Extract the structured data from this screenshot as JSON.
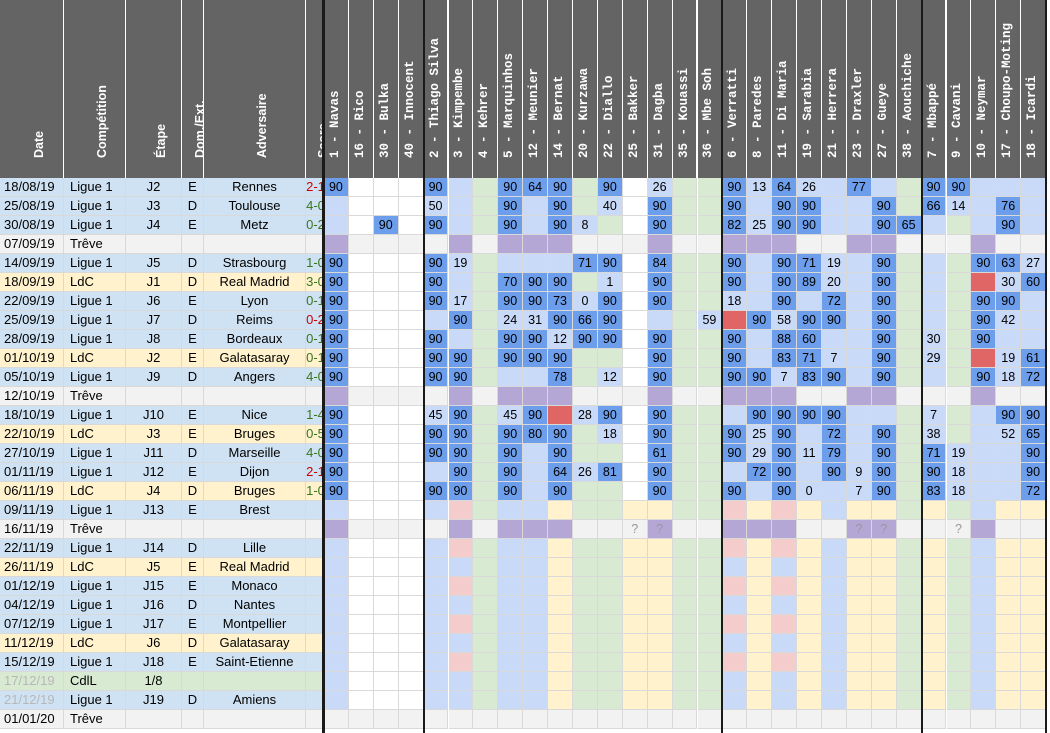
{
  "colors": {
    "header_bg": "#646464",
    "header_text": "#ffffff",
    "ligue1": "#cfe2f3",
    "ldc": "#fff2cc",
    "cdl": "#d9ead3",
    "treve": "#f2f2f2",
    "win": "#38761d",
    "loss": "#cc0000",
    "full90": "#6d9eeb",
    "light_blue": "#c9daf8",
    "green": "#d9ead3",
    "purple": "#b4a7d6",
    "red": "#e06666",
    "pink": "#f4cccc",
    "yellow": "#fff2cc",
    "sub_yellow": "#ffff66",
    "sub_blue": "#a4c2f4"
  },
  "header": {
    "cols": [
      "Date",
      "Compétition",
      "Étape",
      "Dom./Ext.",
      "Adversaire",
      "Score"
    ]
  },
  "players": [
    "1 - Navas",
    "16 - Rico",
    "30 - Bulka",
    "40 - Innocent",
    "2 - Thiago Silva",
    "3 - Kimpembe",
    "4 - Kehrer",
    "5 - Marquinhos",
    "12 - Meunier",
    "14 - Bernat",
    "20 - Kurzawa",
    "22 - Diallo",
    "25 - Bakker",
    "31 - Dagba",
    "35 - Kouassi",
    "36 - Mbe Soh",
    "6 - Verratti",
    "8 - Paredes",
    "11 - Di Maria",
    "19 - Sarabia",
    "21 - Herrera",
    "23 - Draxler",
    "27 - Gueye",
    "38 - Aouchiche",
    "7 - Mbappé",
    "9 - Cavani",
    "10 - Neymar",
    "17 - Choupo-Moting",
    "18 - Icardi"
  ],
  "matches": [
    {
      "date": "18/08/19",
      "comp": "Ligue 1",
      "stage": "J2",
      "venue": "E",
      "opponent": "Rennes",
      "score": "2-1",
      "result": "L"
    },
    {
      "date": "25/08/19",
      "comp": "Ligue 1",
      "stage": "J3",
      "venue": "D",
      "opponent": "Toulouse",
      "score": "4-0",
      "result": "W"
    },
    {
      "date": "30/08/19",
      "comp": "Ligue 1",
      "stage": "J4",
      "venue": "E",
      "opponent": "Metz",
      "score": "0-2",
      "result": "W"
    },
    {
      "date": "07/09/19",
      "comp": "Trêve",
      "stage": "",
      "venue": "",
      "opponent": "",
      "score": "",
      "result": ""
    },
    {
      "date": "14/09/19",
      "comp": "Ligue 1",
      "stage": "J5",
      "venue": "D",
      "opponent": "Strasbourg",
      "score": "1-0",
      "result": "W"
    },
    {
      "date": "18/09/19",
      "comp": "LdC",
      "stage": "J1",
      "venue": "D",
      "opponent": "Real Madrid",
      "score": "3-0",
      "result": "W"
    },
    {
      "date": "22/09/19",
      "comp": "Ligue 1",
      "stage": "J6",
      "venue": "E",
      "opponent": "Lyon",
      "score": "0-1",
      "result": "W"
    },
    {
      "date": "25/09/19",
      "comp": "Ligue 1",
      "stage": "J7",
      "venue": "D",
      "opponent": "Reims",
      "score": "0-2",
      "result": "L"
    },
    {
      "date": "28/09/19",
      "comp": "Ligue 1",
      "stage": "J8",
      "venue": "E",
      "opponent": "Bordeaux",
      "score": "0-1",
      "result": "W"
    },
    {
      "date": "01/10/19",
      "comp": "LdC",
      "stage": "J2",
      "venue": "E",
      "opponent": "Galatasaray",
      "score": "0-1",
      "result": "W"
    },
    {
      "date": "05/10/19",
      "comp": "Ligue 1",
      "stage": "J9",
      "venue": "D",
      "opponent": "Angers",
      "score": "4-0",
      "result": "W"
    },
    {
      "date": "12/10/19",
      "comp": "Trêve",
      "stage": "",
      "venue": "",
      "opponent": "",
      "score": "",
      "result": ""
    },
    {
      "date": "18/10/19",
      "comp": "Ligue 1",
      "stage": "J10",
      "venue": "E",
      "opponent": "Nice",
      "score": "1-4",
      "result": "W"
    },
    {
      "date": "22/10/19",
      "comp": "LdC",
      "stage": "J3",
      "venue": "E",
      "opponent": "Bruges",
      "score": "0-5",
      "result": "W"
    },
    {
      "date": "27/10/19",
      "comp": "Ligue 1",
      "stage": "J11",
      "venue": "D",
      "opponent": "Marseille",
      "score": "4-0",
      "result": "W"
    },
    {
      "date": "01/11/19",
      "comp": "Ligue 1",
      "stage": "J12",
      "venue": "E",
      "opponent": "Dijon",
      "score": "2-1",
      "result": "L"
    },
    {
      "date": "06/11/19",
      "comp": "LdC",
      "stage": "J4",
      "venue": "D",
      "opponent": "Bruges",
      "score": "1-0",
      "result": "W"
    },
    {
      "date": "09/11/19",
      "comp": "Ligue 1",
      "stage": "J13",
      "venue": "E",
      "opponent": "Brest",
      "score": "",
      "result": ""
    },
    {
      "date": "16/11/19",
      "comp": "Trêve",
      "stage": "",
      "venue": "",
      "opponent": "",
      "score": "",
      "result": ""
    },
    {
      "date": "22/11/19",
      "comp": "Ligue 1",
      "stage": "J14",
      "venue": "D",
      "opponent": "Lille",
      "score": "",
      "result": ""
    },
    {
      "date": "26/11/19",
      "comp": "LdC",
      "stage": "J5",
      "venue": "E",
      "opponent": "Real Madrid",
      "score": "",
      "result": ""
    },
    {
      "date": "01/12/19",
      "comp": "Ligue 1",
      "stage": "J15",
      "venue": "E",
      "opponent": "Monaco",
      "score": "",
      "result": ""
    },
    {
      "date": "04/12/19",
      "comp": "Ligue 1",
      "stage": "J16",
      "venue": "D",
      "opponent": "Nantes",
      "score": "",
      "result": ""
    },
    {
      "date": "07/12/19",
      "comp": "Ligue 1",
      "stage": "J17",
      "venue": "E",
      "opponent": "Montpellier",
      "score": "",
      "result": ""
    },
    {
      "date": "11/12/19",
      "comp": "LdC",
      "stage": "J6",
      "venue": "D",
      "opponent": "Galatasaray",
      "score": "",
      "result": ""
    },
    {
      "date": "15/12/19",
      "comp": "Ligue 1",
      "stage": "J18",
      "venue": "E",
      "opponent": "Saint-Etienne",
      "score": "",
      "result": ""
    },
    {
      "date": "17/12/19",
      "comp": "CdlL",
      "stage": "1/8",
      "venue": "",
      "opponent": "",
      "score": "",
      "result": "",
      "faded": true
    },
    {
      "date": "21/12/19",
      "comp": "Ligue 1",
      "stage": "J19",
      "venue": "D",
      "opponent": "Amiens",
      "score": "",
      "result": "",
      "faded": true
    },
    {
      "date": "01/01/20",
      "comp": "Trêve",
      "stage": "",
      "venue": "",
      "opponent": "",
      "score": "",
      "result": ""
    }
  ],
  "grid": [
    [
      "90",
      "",
      "",
      "",
      "90",
      "",
      "",
      "90",
      "64",
      "90",
      "",
      "90",
      "",
      "26",
      "",
      "",
      "90",
      "13",
      "64",
      "26",
      "",
      "77",
      "",
      "",
      "90",
      "90",
      "",
      "",
      ""
    ],
    [
      "",
      "",
      "",
      "",
      "50",
      "",
      "",
      "90",
      "",
      "90",
      "",
      "40",
      "",
      "90",
      "",
      "",
      "90",
      "",
      "90",
      "90",
      "",
      "",
      "90",
      "",
      "66",
      "14",
      "",
      "76",
      ""
    ],
    [
      "",
      "",
      "90",
      "",
      "90",
      "",
      "",
      "90",
      "",
      "90",
      "8",
      "",
      "",
      "90",
      "",
      "",
      "82",
      "25",
      "90",
      "90",
      "",
      "",
      "90",
      "65",
      "",
      "",
      "",
      "90",
      ""
    ],
    [
      "",
      "",
      "",
      "",
      "",
      "",
      "",
      "",
      "",
      "",
      "",
      "",
      "",
      "",
      "",
      "",
      "",
      "",
      "",
      "",
      "",
      "",
      "",
      "",
      "",
      "",
      "",
      "",
      ""
    ],
    [
      "90",
      "",
      "",
      "",
      "90",
      "19",
      "",
      "",
      "",
      "",
      "71",
      "90",
      "",
      "84",
      "",
      "",
      "90",
      "",
      "90",
      "71",
      "19",
      "",
      "90",
      "",
      "",
      "",
      "90",
      "63",
      "27"
    ],
    [
      "90",
      "",
      "",
      "",
      "90",
      "",
      "",
      "70",
      "90",
      "90",
      "",
      "1",
      "",
      "90",
      "",
      "",
      "90",
      "",
      "90",
      "89",
      "20",
      "",
      "90",
      "",
      "",
      "",
      "",
      "30",
      "60"
    ],
    [
      "90",
      "",
      "",
      "",
      "90",
      "17",
      "",
      "90",
      "90",
      "73",
      "0",
      "90",
      "",
      "90",
      "",
      "",
      "18",
      "",
      "90",
      "",
      "72",
      "",
      "90",
      "",
      "",
      "",
      "90",
      "90",
      ""
    ],
    [
      "90",
      "",
      "",
      "",
      "",
      "90",
      "",
      "24",
      "31",
      "90",
      "66",
      "90",
      "",
      "",
      "",
      "59",
      "",
      "90",
      "58",
      "90",
      "90",
      "",
      "90",
      "",
      "",
      "",
      "90",
      "42",
      ""
    ],
    [
      "90",
      "",
      "",
      "",
      "90",
      "",
      "",
      "90",
      "90",
      "12",
      "90",
      "90",
      "",
      "90",
      "",
      "",
      "90",
      "",
      "88",
      "60",
      "",
      "",
      "90",
      "",
      "30",
      "",
      "90",
      "",
      ""
    ],
    [
      "90",
      "",
      "",
      "",
      "90",
      "90",
      "",
      "90",
      "90",
      "90",
      "",
      "",
      "",
      "90",
      "",
      "",
      "90",
      "",
      "83",
      "71",
      "7",
      "",
      "90",
      "",
      "29",
      "",
      "",
      "19",
      "61"
    ],
    [
      "90",
      "",
      "",
      "",
      "90",
      "90",
      "",
      "",
      "",
      "78",
      "",
      "12",
      "",
      "90",
      "",
      "",
      "90",
      "90",
      "7",
      "83",
      "90",
      "",
      "90",
      "",
      "",
      "",
      "90",
      "18",
      "72"
    ],
    [
      "",
      "",
      "",
      "",
      "",
      "",
      "",
      "",
      "",
      "",
      "",
      "",
      "",
      "",
      "",
      "",
      "",
      "",
      "",
      "",
      "",
      "",
      "",
      "",
      "",
      "",
      "",
      "",
      ""
    ],
    [
      "90",
      "",
      "",
      "",
      "45",
      "90",
      "",
      "45",
      "90",
      "",
      "28",
      "90",
      "",
      "90",
      "",
      "",
      "",
      "90",
      "90",
      "90",
      "90",
      "",
      "",
      "",
      "7",
      "",
      "",
      "90",
      "90"
    ],
    [
      "90",
      "",
      "",
      "",
      "90",
      "90",
      "",
      "90",
      "80",
      "90",
      "",
      "18",
      "",
      "90",
      "",
      "",
      "90",
      "25",
      "90",
      "",
      "72",
      "",
      "90",
      "",
      "38",
      "",
      "",
      "52",
      "65"
    ],
    [
      "90",
      "",
      "",
      "",
      "90",
      "90",
      "",
      "90",
      "",
      "90",
      "",
      "",
      "",
      "61",
      "",
      "",
      "90",
      "29",
      "90",
      "11",
      "79",
      "",
      "90",
      "",
      "71",
      "19",
      "",
      "",
      "90"
    ],
    [
      "90",
      "",
      "",
      "",
      "",
      "90",
      "",
      "90",
      "",
      "64",
      "26",
      "81",
      "",
      "90",
      "",
      "",
      "",
      "72",
      "90",
      "",
      "90",
      "9",
      "90",
      "",
      "90",
      "18",
      "",
      "",
      "90"
    ],
    [
      "90",
      "",
      "",
      "",
      "90",
      "90",
      "",
      "90",
      "",
      "90",
      "",
      "",
      "",
      "90",
      "",
      "",
      "90",
      "",
      "90",
      "0",
      "",
      "7",
      "90",
      "",
      "83",
      "18",
      "",
      "",
      "72"
    ],
    [
      "",
      "",
      "",
      "",
      "",
      "",
      "",
      "",
      "",
      "",
      "",
      "",
      "",
      "",
      "",
      "",
      "",
      "",
      "",
      "",
      "",
      "",
      "",
      "",
      "",
      "",
      "",
      "",
      ""
    ],
    [
      "",
      "",
      "",
      "",
      "",
      "",
      "",
      "",
      "",
      "",
      "",
      "",
      "?",
      "?",
      "",
      "",
      "",
      "",
      "",
      "",
      "",
      "?",
      "?",
      "",
      "",
      "?",
      "",
      "",
      ""
    ],
    [
      "",
      "",
      "",
      "",
      "",
      "",
      "",
      "",
      "",
      "",
      "",
      "",
      "",
      "",
      "",
      "",
      "",
      "",
      "",
      "",
      "",
      "",
      "",
      "",
      "",
      "",
      "",
      "",
      ""
    ],
    [
      "",
      "",
      "",
      "",
      "",
      "",
      "",
      "",
      "",
      "",
      "",
      "",
      "",
      "",
      "",
      "",
      "",
      "",
      "",
      "",
      "",
      "",
      "",
      "",
      "",
      "",
      "",
      "",
      ""
    ],
    [
      "",
      "",
      "",
      "",
      "",
      "",
      "",
      "",
      "",
      "",
      "",
      "",
      "",
      "",
      "",
      "",
      "",
      "",
      "",
      "",
      "",
      "",
      "",
      "",
      "",
      "",
      "",
      "",
      ""
    ],
    [
      "",
      "",
      "",
      "",
      "",
      "",
      "",
      "",
      "",
      "",
      "",
      "",
      "",
      "",
      "",
      "",
      "",
      "",
      "",
      "",
      "",
      "",
      "",
      "",
      "",
      "",
      "",
      "",
      ""
    ],
    [
      "",
      "",
      "",
      "",
      "",
      "",
      "",
      "",
      "",
      "",
      "",
      "",
      "",
      "",
      "",
      "",
      "",
      "",
      "",
      "",
      "",
      "",
      "",
      "",
      "",
      "",
      "",
      "",
      ""
    ],
    [
      "",
      "",
      "",
      "",
      "",
      "",
      "",
      "",
      "",
      "",
      "",
      "",
      "",
      "",
      "",
      "",
      "",
      "",
      "",
      "",
      "",
      "",
      "",
      "",
      "",
      "",
      "",
      "",
      ""
    ],
    [
      "",
      "",
      "",
      "",
      "",
      "",
      "",
      "",
      "",
      "",
      "",
      "",
      "",
      "",
      "",
      "",
      "",
      "",
      "",
      "",
      "",
      "",
      "",
      "",
      "",
      "",
      "",
      "",
      ""
    ],
    [
      "",
      "",
      "",
      "",
      "",
      "",
      "",
      "",
      "",
      "",
      "",
      "",
      "",
      "",
      "",
      "",
      "",
      "",
      "",
      "",
      "",
      "",
      "",
      "",
      "",
      "",
      "",
      "",
      ""
    ],
    [
      "",
      "",
      "",
      "",
      "",
      "",
      "",
      "",
      "",
      "",
      "",
      "",
      "",
      "",
      "",
      "",
      "",
      "",
      "",
      "",
      "",
      "",
      "",
      "",
      "",
      "",
      "",
      "",
      ""
    ],
    [
      "",
      "",
      "",
      "",
      "",
      "",
      "",
      "",
      "",
      "",
      "",
      "",
      "",
      "",
      "",
      "",
      "",
      "",
      "",
      "",
      "",
      "",
      "",
      "",
      "",
      "",
      "",
      "",
      ""
    ]
  ]
}
